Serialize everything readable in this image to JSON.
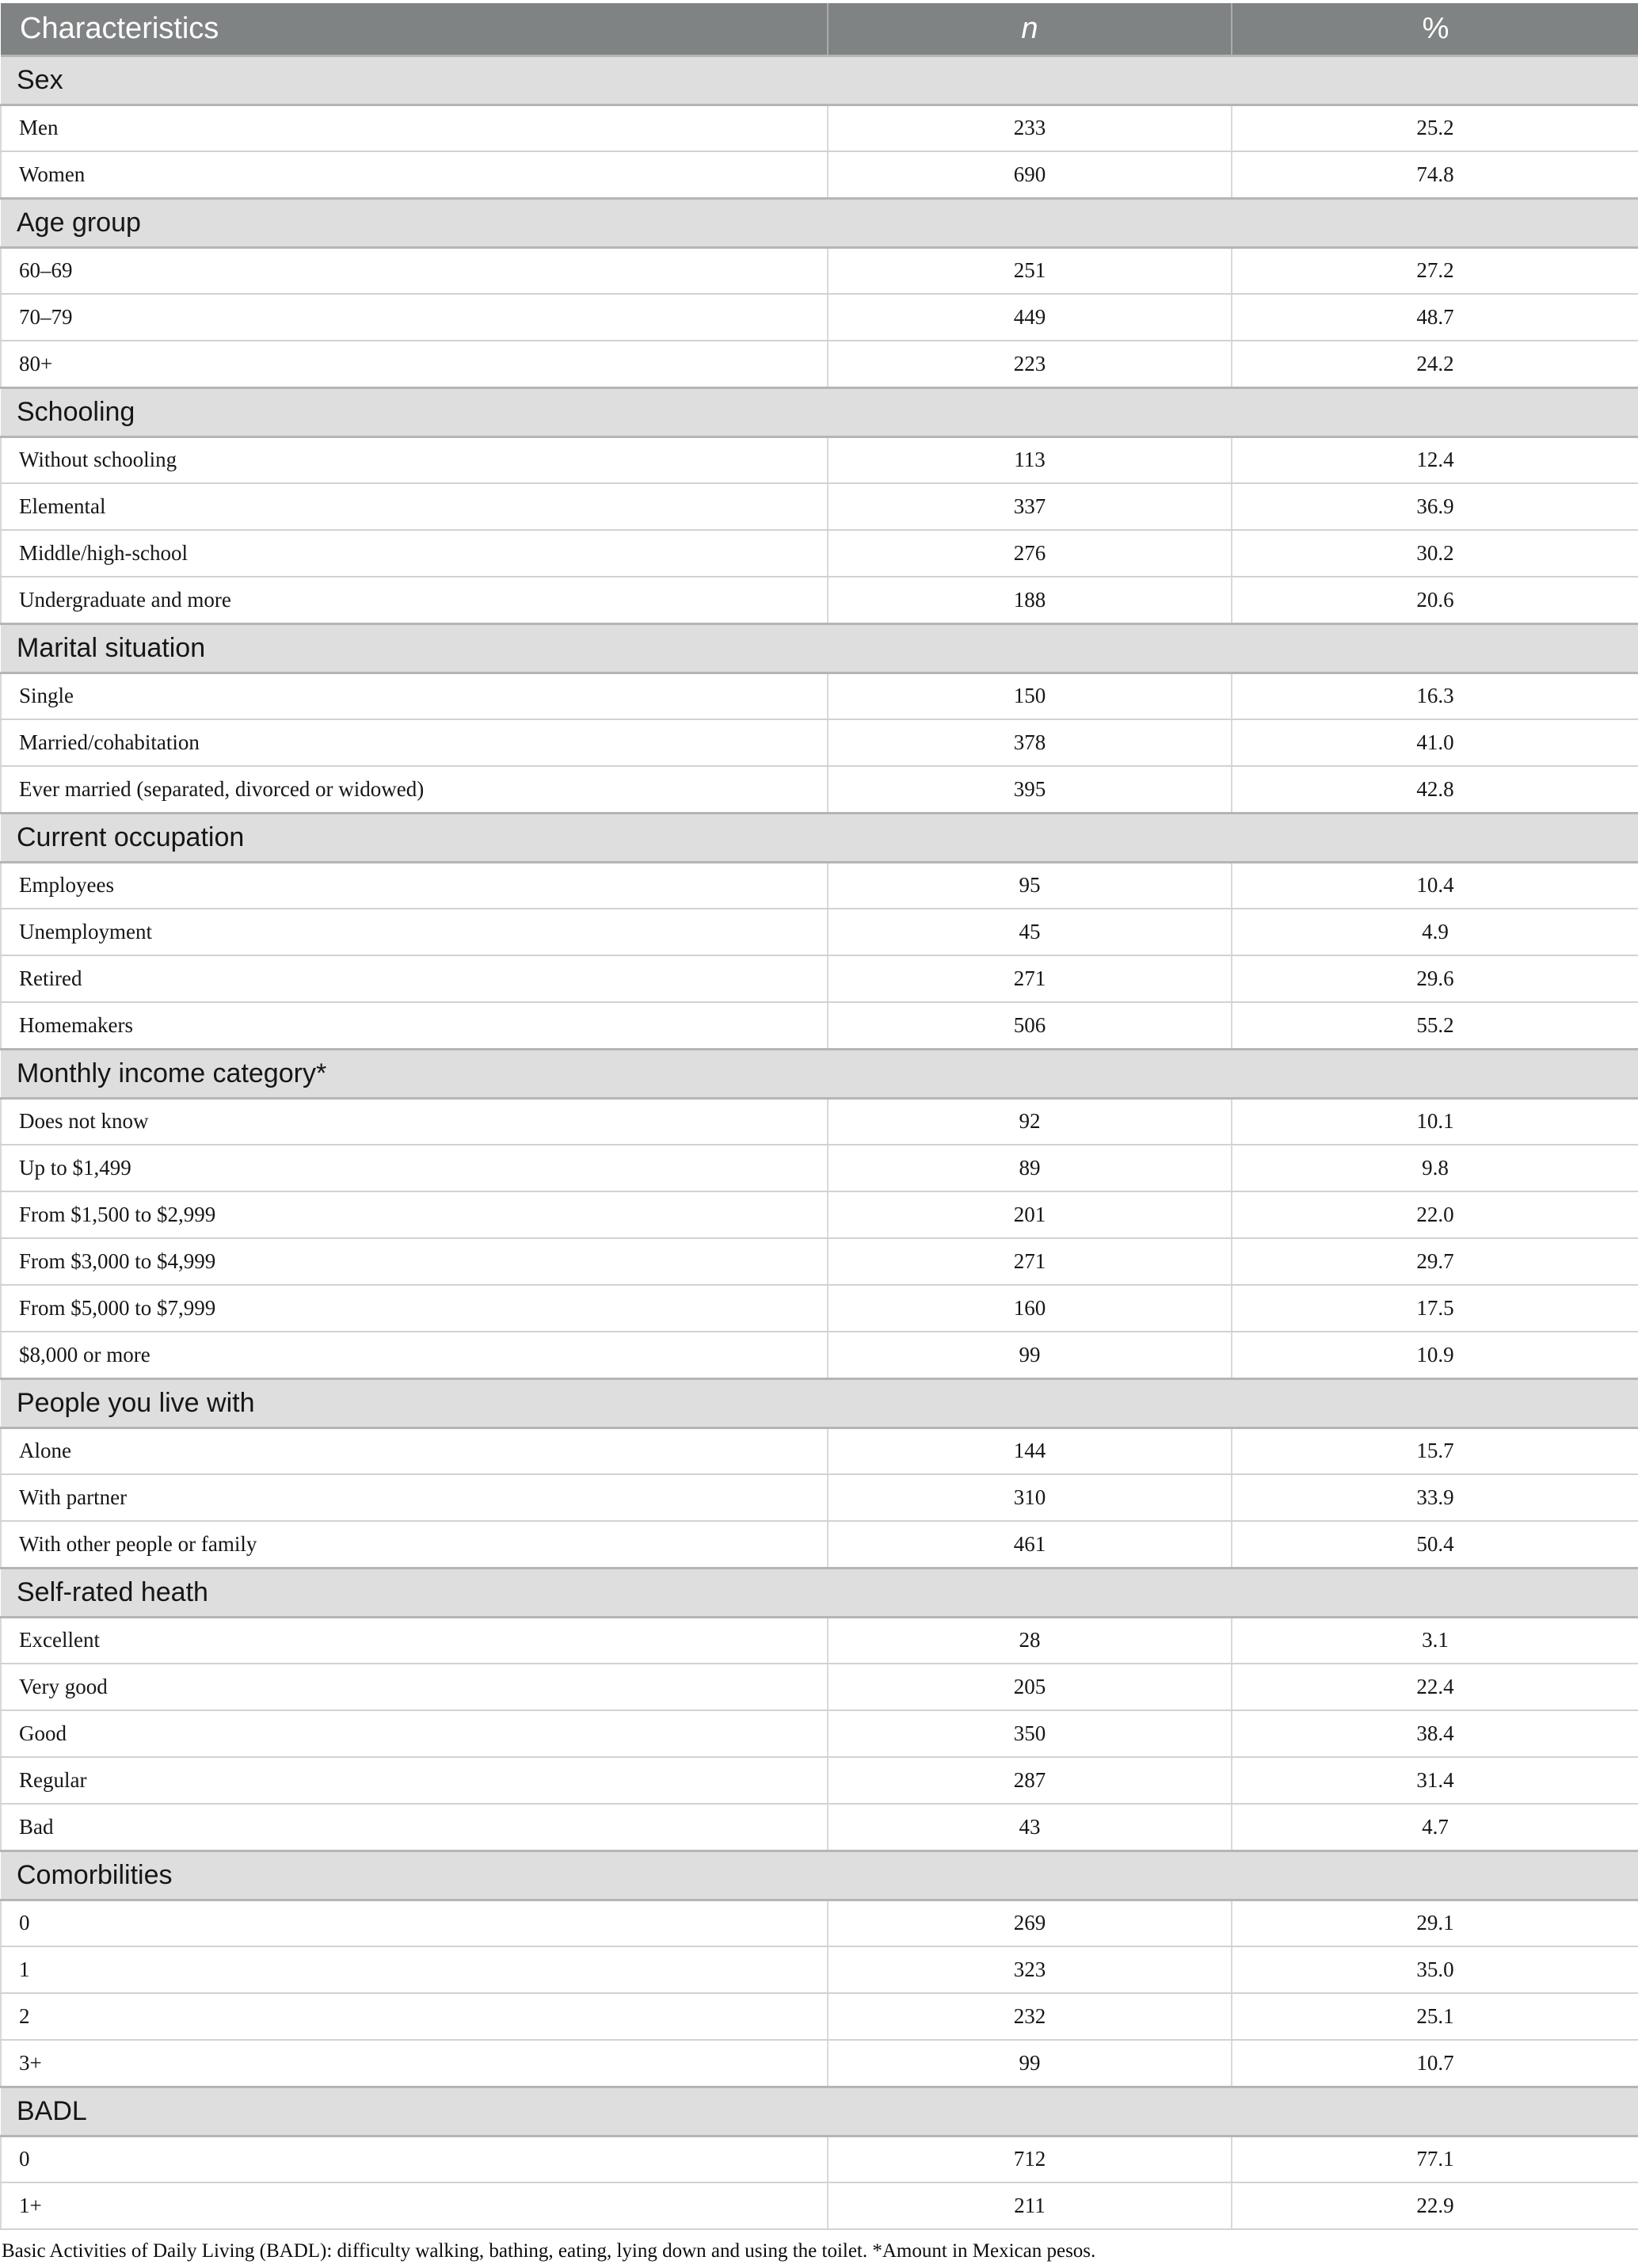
{
  "table": {
    "columns": [
      "Characteristics",
      "n",
      "%"
    ],
    "sections": [
      {
        "label": "Sex",
        "rows": [
          [
            "Men",
            "233",
            "25.2"
          ],
          [
            "Women",
            "690",
            "74.8"
          ]
        ]
      },
      {
        "label": "Age group",
        "rows": [
          [
            "60–69",
            "251",
            "27.2"
          ],
          [
            "70–79",
            "449",
            "48.7"
          ],
          [
            "80+",
            "223",
            "24.2"
          ]
        ]
      },
      {
        "label": "Schooling",
        "rows": [
          [
            "Without schooling",
            "113",
            "12.4"
          ],
          [
            "Elemental",
            "337",
            "36.9"
          ],
          [
            "Middle/high-school",
            "276",
            "30.2"
          ],
          [
            "Undergraduate and more",
            "188",
            "20.6"
          ]
        ]
      },
      {
        "label": "Marital situation",
        "rows": [
          [
            "Single",
            "150",
            "16.3"
          ],
          [
            "Married/cohabitation",
            "378",
            "41.0"
          ],
          [
            "Ever married (separated, divorced or widowed)",
            "395",
            "42.8"
          ]
        ]
      },
      {
        "label": "Current occupation",
        "rows": [
          [
            "Employees",
            "95",
            "10.4"
          ],
          [
            "Unemployment",
            "45",
            "4.9"
          ],
          [
            "Retired",
            "271",
            "29.6"
          ],
          [
            "Homemakers",
            "506",
            "55.2"
          ]
        ]
      },
      {
        "label": "Monthly income category*",
        "rows": [
          [
            "Does not know",
            "92",
            "10.1"
          ],
          [
            "Up to $1,499",
            "89",
            "9.8"
          ],
          [
            "From $1,500 to $2,999",
            "201",
            "22.0"
          ],
          [
            "From $3,000 to $4,999",
            "271",
            "29.7"
          ],
          [
            "From $5,000 to $7,999",
            "160",
            "17.5"
          ],
          [
            "$8,000 or more",
            "99",
            "10.9"
          ]
        ]
      },
      {
        "label": "People you live with",
        "rows": [
          [
            "Alone",
            "144",
            "15.7"
          ],
          [
            "With partner",
            "310",
            "33.9"
          ],
          [
            "With other people or family",
            "461",
            "50.4"
          ]
        ]
      },
      {
        "label": "Self-rated heath",
        "rows": [
          [
            "Excellent",
            "28",
            "3.1"
          ],
          [
            "Very good",
            "205",
            "22.4"
          ],
          [
            "Good",
            "350",
            "38.4"
          ],
          [
            "Regular",
            "287",
            "31.4"
          ],
          [
            "Bad",
            "43",
            "4.7"
          ]
        ]
      },
      {
        "label": "Comorbilities",
        "rows": [
          [
            "0",
            "269",
            "29.1"
          ],
          [
            "1",
            "323",
            "35.0"
          ],
          [
            "2",
            "232",
            "25.1"
          ],
          [
            "3+",
            "99",
            "10.7"
          ]
        ]
      },
      {
        "label": "BADL",
        "rows": [
          [
            "0",
            "712",
            "77.1"
          ],
          [
            "1+",
            "211",
            "22.9"
          ]
        ]
      }
    ],
    "footnote": "Basic Activities of Daily Living (BADL): difficulty walking, bathing, eating, lying down and using the toilet. *Amount in Mexican pesos."
  },
  "colors": {
    "header_bg": "#808383",
    "header_text": "#ffffff",
    "section_bg": "#dedede",
    "border_dark": "#b5b5b5",
    "border_light": "#d2d2d2",
    "border_vert": "#d9d9d9",
    "body_text": "#161616"
  }
}
